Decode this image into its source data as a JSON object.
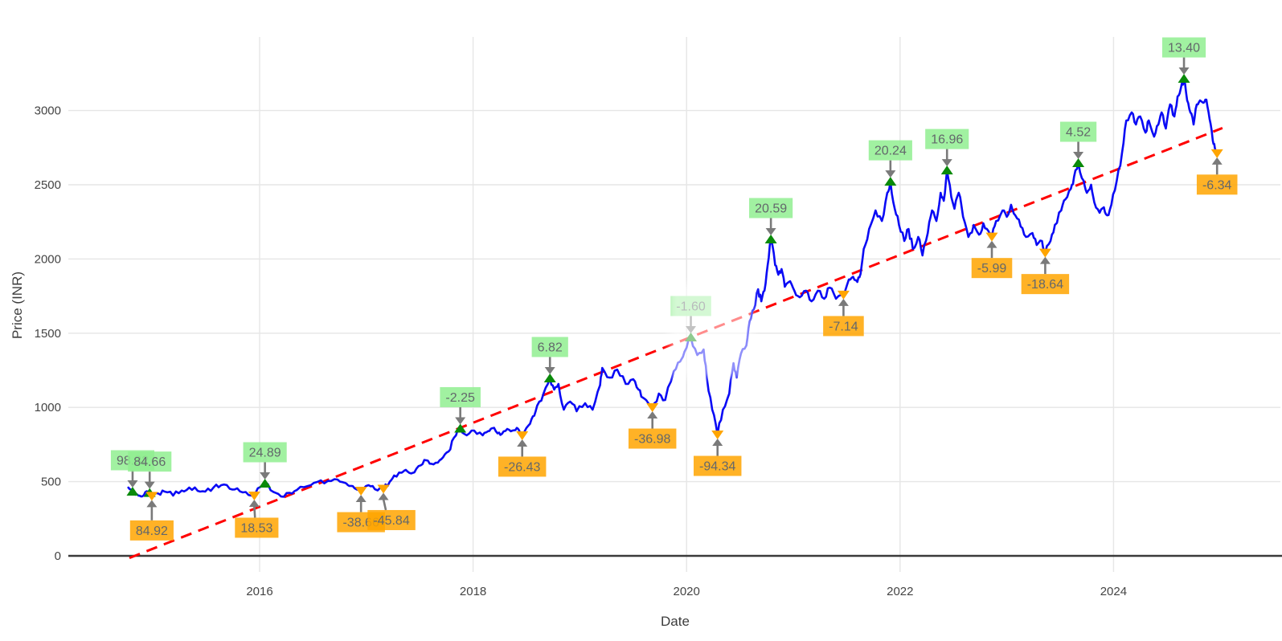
{
  "chart_data": {
    "type": "line",
    "title": "",
    "xlabel": "Date",
    "ylabel": "Price (INR)",
    "x_ticks": [
      2016,
      2018,
      2020,
      2022,
      2024
    ],
    "y_ticks": [
      0,
      500,
      1000,
      1500,
      2000,
      2500,
      3000
    ],
    "xlim": [
      2014.21,
      2025.58
    ],
    "ylim": [
      0,
      3495
    ],
    "grid": "on",
    "legend": "none",
    "series": [
      {
        "name": "Price",
        "color": "#0A0AF5",
        "points": [
          [
            2014.77,
            460
          ],
          [
            2014.81,
            433
          ],
          [
            2014.85,
            415
          ],
          [
            2014.89,
            400
          ],
          [
            2014.93,
            430
          ],
          [
            2014.97,
            424
          ],
          [
            2014.99,
            404
          ],
          [
            2015.05,
            420
          ],
          [
            2015.11,
            433
          ],
          [
            2015.19,
            406
          ],
          [
            2015.27,
            440
          ],
          [
            2015.34,
            460
          ],
          [
            2015.42,
            438
          ],
          [
            2015.49,
            433
          ],
          [
            2015.57,
            462
          ],
          [
            2015.64,
            476
          ],
          [
            2015.72,
            452
          ],
          [
            2015.79,
            455
          ],
          [
            2015.87,
            430
          ],
          [
            2015.95,
            406
          ],
          [
            2016.05,
            487
          ],
          [
            2016.13,
            430
          ],
          [
            2016.2,
            400
          ],
          [
            2016.28,
            425
          ],
          [
            2016.35,
            444
          ],
          [
            2016.45,
            470
          ],
          [
            2016.54,
            498
          ],
          [
            2016.64,
            505
          ],
          [
            2016.73,
            514
          ],
          [
            2016.8,
            492
          ],
          [
            2016.84,
            471
          ],
          [
            2016.89,
            455
          ],
          [
            2016.95,
            438
          ],
          [
            2017.02,
            476
          ],
          [
            2017.08,
            449
          ],
          [
            2017.16,
            452
          ],
          [
            2017.22,
            500
          ],
          [
            2017.26,
            541
          ],
          [
            2017.33,
            560
          ],
          [
            2017.37,
            579
          ],
          [
            2017.42,
            555
          ],
          [
            2017.45,
            563
          ],
          [
            2017.51,
            610
          ],
          [
            2017.56,
            644
          ],
          [
            2017.61,
            620
          ],
          [
            2017.67,
            628
          ],
          [
            2017.72,
            665
          ],
          [
            2017.77,
            703
          ],
          [
            2017.82,
            795
          ],
          [
            2017.88,
            858
          ],
          [
            2017.94,
            812
          ],
          [
            2018.01,
            844
          ],
          [
            2018.09,
            812
          ],
          [
            2018.14,
            840
          ],
          [
            2018.18,
            860
          ],
          [
            2018.23,
            825
          ],
          [
            2018.27,
            822
          ],
          [
            2018.32,
            855
          ],
          [
            2018.37,
            844
          ],
          [
            2018.41,
            862
          ],
          [
            2018.44,
            830
          ],
          [
            2018.46,
            812
          ],
          [
            2018.52,
            880
          ],
          [
            2018.56,
            940
          ],
          [
            2018.6,
            1012
          ],
          [
            2018.66,
            1093
          ],
          [
            2018.72,
            1196
          ],
          [
            2018.76,
            1120
          ],
          [
            2018.8,
            1158
          ],
          [
            2018.85,
            985
          ],
          [
            2018.91,
            1039
          ],
          [
            2018.97,
            974
          ],
          [
            2019.05,
            1028
          ],
          [
            2019.12,
            985
          ],
          [
            2019.19,
            1150
          ],
          [
            2019.21,
            1266
          ],
          [
            2019.28,
            1201
          ],
          [
            2019.35,
            1255
          ],
          [
            2019.43,
            1158
          ],
          [
            2019.5,
            1190
          ],
          [
            2019.55,
            1120
          ],
          [
            2019.59,
            1066
          ],
          [
            2019.64,
            1030
          ],
          [
            2019.68,
            1001
          ],
          [
            2019.74,
            1093
          ],
          [
            2019.8,
            1050
          ],
          [
            2019.88,
            1244
          ],
          [
            2019.94,
            1309
          ],
          [
            2019.98,
            1374
          ],
          [
            2020.04,
            1472
          ],
          [
            2020.1,
            1353
          ],
          [
            2020.16,
            1390
          ],
          [
            2020.19,
            1201
          ],
          [
            2020.24,
            985
          ],
          [
            2020.29,
            817
          ],
          [
            2020.34,
            985
          ],
          [
            2020.4,
            1093
          ],
          [
            2020.44,
            1298
          ],
          [
            2020.47,
            1201
          ],
          [
            2020.51,
            1363
          ],
          [
            2020.56,
            1417
          ],
          [
            2020.59,
            1580
          ],
          [
            2020.63,
            1661
          ],
          [
            2020.67,
            1796
          ],
          [
            2020.7,
            1715
          ],
          [
            2020.73,
            1786
          ],
          [
            2020.76,
            1959
          ],
          [
            2020.79,
            2132
          ],
          [
            2020.83,
            1959
          ],
          [
            2020.86,
            1894
          ],
          [
            2020.89,
            1932
          ],
          [
            2020.92,
            1813
          ],
          [
            2020.97,
            1850
          ],
          [
            2021.01,
            1786
          ],
          [
            2021.06,
            1742
          ],
          [
            2021.12,
            1786
          ],
          [
            2021.17,
            1715
          ],
          [
            2021.23,
            1786
          ],
          [
            2021.29,
            1732
          ],
          [
            2021.34,
            1807
          ],
          [
            2021.4,
            1732
          ],
          [
            2021.47,
            1759
          ],
          [
            2021.52,
            1862
          ],
          [
            2021.56,
            1880
          ],
          [
            2021.6,
            1845
          ],
          [
            2021.63,
            1900
          ],
          [
            2021.66,
            2067
          ],
          [
            2021.71,
            2202
          ],
          [
            2021.77,
            2327
          ],
          [
            2021.83,
            2256
          ],
          [
            2021.88,
            2446
          ],
          [
            2021.91,
            2521
          ],
          [
            2021.95,
            2338
          ],
          [
            2021.99,
            2229
          ],
          [
            2022.04,
            2121
          ],
          [
            2022.08,
            2202
          ],
          [
            2022.12,
            2067
          ],
          [
            2022.17,
            2148
          ],
          [
            2022.21,
            2024
          ],
          [
            2022.26,
            2175
          ],
          [
            2022.3,
            2327
          ],
          [
            2022.34,
            2256
          ],
          [
            2022.38,
            2446
          ],
          [
            2022.41,
            2392
          ],
          [
            2022.44,
            2597
          ],
          [
            2022.48,
            2419
          ],
          [
            2022.51,
            2338
          ],
          [
            2022.55,
            2446
          ],
          [
            2022.59,
            2284
          ],
          [
            2022.64,
            2148
          ],
          [
            2022.69,
            2229
          ],
          [
            2022.74,
            2164
          ],
          [
            2022.78,
            2240
          ],
          [
            2022.83,
            2186
          ],
          [
            2022.86,
            2150
          ],
          [
            2022.9,
            2256
          ],
          [
            2022.96,
            2327
          ],
          [
            2023.0,
            2284
          ],
          [
            2023.04,
            2365
          ],
          [
            2023.08,
            2294
          ],
          [
            2023.13,
            2218
          ],
          [
            2023.18,
            2148
          ],
          [
            2023.24,
            2175
          ],
          [
            2023.28,
            2094
          ],
          [
            2023.33,
            2121
          ],
          [
            2023.36,
            2042
          ],
          [
            2023.41,
            2121
          ],
          [
            2023.45,
            2229
          ],
          [
            2023.51,
            2327
          ],
          [
            2023.55,
            2402
          ],
          [
            2023.6,
            2473
          ],
          [
            2023.63,
            2554
          ],
          [
            2023.67,
            2646
          ],
          [
            2023.72,
            2527
          ],
          [
            2023.75,
            2446
          ],
          [
            2023.79,
            2500
          ],
          [
            2023.82,
            2381
          ],
          [
            2023.87,
            2311
          ],
          [
            2023.91,
            2348
          ],
          [
            2023.94,
            2294
          ],
          [
            2023.98,
            2365
          ],
          [
            2024.03,
            2527
          ],
          [
            2024.08,
            2716
          ],
          [
            2024.12,
            2933
          ],
          [
            2024.17,
            2987
          ],
          [
            2024.21,
            2906
          ],
          [
            2024.25,
            2960
          ],
          [
            2024.3,
            2851
          ],
          [
            2024.33,
            2933
          ],
          [
            2024.38,
            2824
          ],
          [
            2024.42,
            2906
          ],
          [
            2024.45,
            2987
          ],
          [
            2024.49,
            2879
          ],
          [
            2024.53,
            3041
          ],
          [
            2024.57,
            2960
          ],
          [
            2024.6,
            3095
          ],
          [
            2024.63,
            3149
          ],
          [
            2024.66,
            3214
          ],
          [
            2024.69,
            3068
          ],
          [
            2024.72,
            2987
          ],
          [
            2024.75,
            2906
          ],
          [
            2024.78,
            3041
          ],
          [
            2024.81,
            3068
          ],
          [
            2024.84,
            3052
          ],
          [
            2024.87,
            3073
          ],
          [
            2024.9,
            2943
          ],
          [
            2024.93,
            2797
          ],
          [
            2024.95,
            2743
          ],
          [
            2024.97,
            2712
          ]
        ]
      }
    ],
    "trendline": {
      "name": "Linear trend",
      "color": "#FF0000",
      "style": "dashed",
      "points": [
        [
          2014.78,
          -14
        ],
        [
          2025.02,
          2882
        ]
      ]
    },
    "annotations": [
      {
        "label": "98.32",
        "type": "peak",
        "year": 2014.81,
        "price": 433
      },
      {
        "label": "84.66",
        "type": "peak",
        "year": 2014.97,
        "price": 424
      },
      {
        "label": "84.92",
        "type": "trough",
        "year": 2014.99,
        "price": 404,
        "dy": 43
      },
      {
        "label": "18.53",
        "type": "trough",
        "year": 2015.95,
        "price": 406,
        "dx": 3,
        "dy": 40
      },
      {
        "label": "24.89",
        "type": "peak",
        "year": 2016.05,
        "price": 487
      },
      {
        "label": "-38.66",
        "type": "trough",
        "year": 2016.95,
        "price": 438
      },
      {
        "label": "-45.84",
        "type": "trough",
        "year": 2017.16,
        "price": 452,
        "dx": 10
      },
      {
        "label": "-2.25",
        "type": "peak",
        "year": 2017.88,
        "price": 858
      },
      {
        "label": "-26.43",
        "type": "trough",
        "year": 2018.46,
        "price": 812
      },
      {
        "label": "6.82",
        "type": "peak",
        "year": 2018.72,
        "price": 1196
      },
      {
        "label": "-36.98",
        "type": "trough",
        "year": 2019.68,
        "price": 1001
      },
      {
        "label": "-1.60",
        "type": "peak",
        "year": 2020.04,
        "price": 1472
      },
      {
        "label": "-94.34",
        "type": "trough",
        "year": 2020.29,
        "price": 817
      },
      {
        "label": "20.59",
        "type": "peak",
        "year": 2020.79,
        "price": 2132
      },
      {
        "label": "-7.14",
        "type": "trough",
        "year": 2021.47,
        "price": 1759
      },
      {
        "label": "20.24",
        "type": "peak",
        "year": 2021.91,
        "price": 2521
      },
      {
        "label": "16.96",
        "type": "peak",
        "year": 2022.44,
        "price": 2597
      },
      {
        "label": "-5.99",
        "type": "trough",
        "year": 2022.86,
        "price": 2150
      },
      {
        "label": "-18.64",
        "type": "trough",
        "year": 2023.36,
        "price": 2042
      },
      {
        "label": "4.52",
        "type": "peak",
        "year": 2023.67,
        "price": 2646
      },
      {
        "label": "13.40",
        "type": "peak",
        "year": 2024.66,
        "price": 3214
      },
      {
        "label": "-6.34",
        "type": "trough",
        "year": 2024.97,
        "price": 2712
      }
    ]
  },
  "colors": {
    "price_line": "#0A0AF5",
    "trendline": "#FF0000",
    "peak_marker": "#0A8A0A",
    "trough_marker": "#FFA500",
    "peak_label_bg": "#90EE90",
    "trough_label_bg": "#FFA500",
    "label_text": "#63676B",
    "arrow": "#7A7A7A",
    "grid": "#E6E6E6",
    "zeroline": "#3A3A3A",
    "tick_text": "#444444"
  }
}
